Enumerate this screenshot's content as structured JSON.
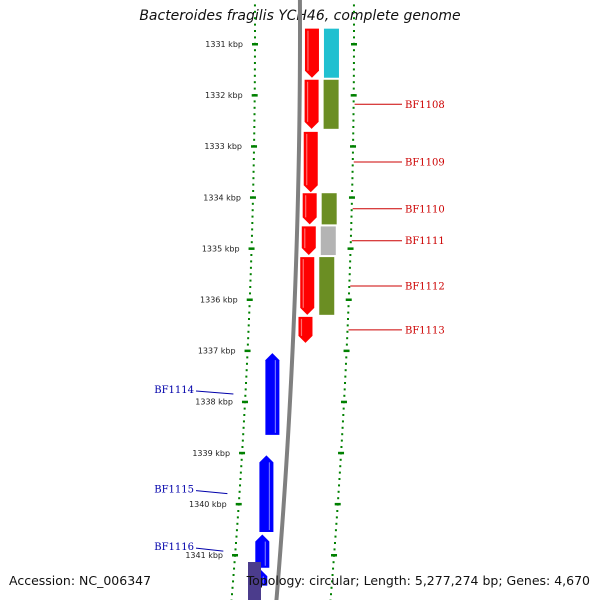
{
  "title": "Bacteroides fragilis YCH46, complete genome",
  "footer": {
    "accession": "Accession: NC_006347",
    "topology": "Topology: circular; Length: 5,277,274 bp; Genes: 4,670"
  },
  "colors": {
    "forward_gene": "#ff0000",
    "reverse_gene": "#0000ff",
    "cog_olive": "#6b8e23",
    "cog_gray": "#b4b4b4",
    "cog_cyan": "#20c0d0",
    "backbone": "#808080",
    "ticks": "#008000",
    "forward_label": "#cc0000",
    "reverse_label": "#0000aa"
  },
  "kbp_scale": [
    {
      "kbp": 1331,
      "label": "1331 kbp"
    },
    {
      "kbp": 1332,
      "label": "1332 kbp"
    },
    {
      "kbp": 1333,
      "label": "1333 kbp"
    },
    {
      "kbp": 1334,
      "label": "1334 kbp"
    },
    {
      "kbp": 1335,
      "label": "1335 kbp"
    },
    {
      "kbp": 1336,
      "label": "1336 kbp"
    },
    {
      "kbp": 1337,
      "label": "1337 kbp"
    },
    {
      "kbp": 1338,
      "label": "1338 kbp"
    },
    {
      "kbp": 1339,
      "label": "1339 kbp"
    },
    {
      "kbp": 1340,
      "label": "1340 kbp"
    },
    {
      "kbp": 1341,
      "label": "1341 kbp"
    }
  ],
  "forward_genes": [
    {
      "start": 1330.7,
      "end": 1331.66
    },
    {
      "start": 1331.7,
      "end": 1332.66,
      "label": "BF1108"
    },
    {
      "start": 1332.72,
      "end": 1333.9,
      "label": "BF1109"
    },
    {
      "start": 1333.92,
      "end": 1334.53,
      "label": "BF1110"
    },
    {
      "start": 1334.57,
      "end": 1335.13,
      "label": "BF1111"
    },
    {
      "start": 1335.17,
      "end": 1336.3,
      "label": "BF1112"
    },
    {
      "start": 1336.34,
      "end": 1336.85,
      "label": "BF1113"
    }
  ],
  "cog_blocks": [
    {
      "start": 1330.7,
      "end": 1331.66,
      "color": "cog_cyan"
    },
    {
      "start": 1331.7,
      "end": 1332.66,
      "color": "cog_olive"
    },
    {
      "start": 1333.92,
      "end": 1334.53,
      "color": "cog_olive"
    },
    {
      "start": 1334.57,
      "end": 1335.13,
      "color": "cog_gray"
    },
    {
      "start": 1335.17,
      "end": 1336.3,
      "color": "cog_olive"
    }
  ],
  "reverse_genes": [
    {
      "start": 1337.05,
      "end": 1338.65,
      "label": "BF1114"
    },
    {
      "start": 1339.05,
      "end": 1340.55,
      "label": "BF1115"
    },
    {
      "start": 1340.6,
      "end": 1341.25,
      "label": "BF1116"
    },
    {
      "start": 1341.28,
      "end": 1341.6
    }
  ]
}
